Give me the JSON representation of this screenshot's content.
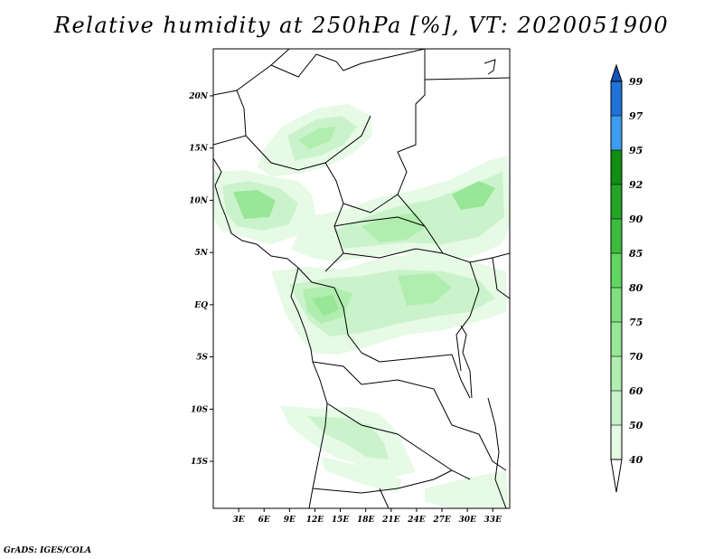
{
  "title": "Relative humidity at 250hPa [%], VT: 2020051900",
  "footer": "GrADS: IGES/COLA",
  "map": {
    "lon_range": [
      0,
      35
    ],
    "lat_range": [
      -19.5,
      24.5
    ],
    "lat_ticks": [
      {
        "value": 20,
        "label": "20N"
      },
      {
        "value": 15,
        "label": "15N"
      },
      {
        "value": 10,
        "label": "10N"
      },
      {
        "value": 5,
        "label": "5N"
      },
      {
        "value": 0,
        "label": "EQ"
      },
      {
        "value": -5,
        "label": "5S"
      },
      {
        "value": -10,
        "label": "10S"
      },
      {
        "value": -15,
        "label": "15S"
      }
    ],
    "lon_ticks": [
      {
        "value": 3,
        "label": "3E"
      },
      {
        "value": 6,
        "label": "6E"
      },
      {
        "value": 9,
        "label": "9E"
      },
      {
        "value": 12,
        "label": "12E"
      },
      {
        "value": 15,
        "label": "15E"
      },
      {
        "value": 18,
        "label": "18E"
      },
      {
        "value": 21,
        "label": "21E"
      },
      {
        "value": 24,
        "label": "24E"
      },
      {
        "value": 27,
        "label": "27E"
      },
      {
        "value": 30,
        "label": "30E"
      },
      {
        "value": 33,
        "label": "33E"
      }
    ]
  },
  "colorbar": {
    "levels": [
      "40",
      "50",
      "60",
      "70",
      "75",
      "80",
      "85",
      "90",
      "92",
      "95",
      "97",
      "99"
    ],
    "colors": [
      "#ffffff",
      "#e6fae6",
      "#cbf3cb",
      "#b0eeaf",
      "#97e797",
      "#7ee07e",
      "#5fd65f",
      "#3bbd3b",
      "#25a525",
      "#128e12",
      "#3c9df0",
      "#1f72d8",
      "#1452b8"
    ]
  }
}
